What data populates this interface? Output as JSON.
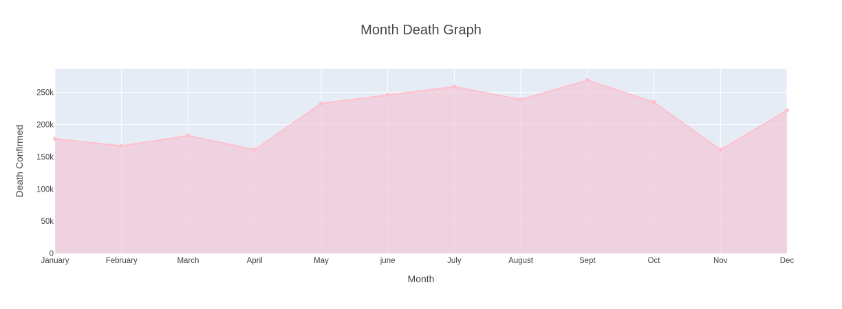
{
  "chart_data": {
    "type": "area",
    "title": "Month Death Graph",
    "xlabel": "Month",
    "ylabel": "Death Confirmed",
    "categories": [
      "January",
      "February",
      "March",
      "April",
      "May",
      "june",
      "July",
      "August",
      "Sept",
      "Oct",
      "Nov",
      "Dec"
    ],
    "series": [
      {
        "values": [
          178000,
          167000,
          183000,
          161000,
          233000,
          246000,
          259000,
          239000,
          269000,
          235000,
          161000,
          222000
        ]
      }
    ],
    "ylim": [
      0,
      287000
    ],
    "y_ticks": [
      0,
      50000,
      100000,
      150000,
      200000,
      250000
    ],
    "y_tick_labels": [
      "0",
      "50k",
      "100k",
      "150k",
      "200k",
      "250k"
    ],
    "grid": true,
    "legend": "none",
    "colors": {
      "plot_background": "#e5ecf6",
      "gridline": "#ffffff",
      "line": "#ffc0cb",
      "fill": "#f4c2d2",
      "text": "#444444"
    }
  }
}
